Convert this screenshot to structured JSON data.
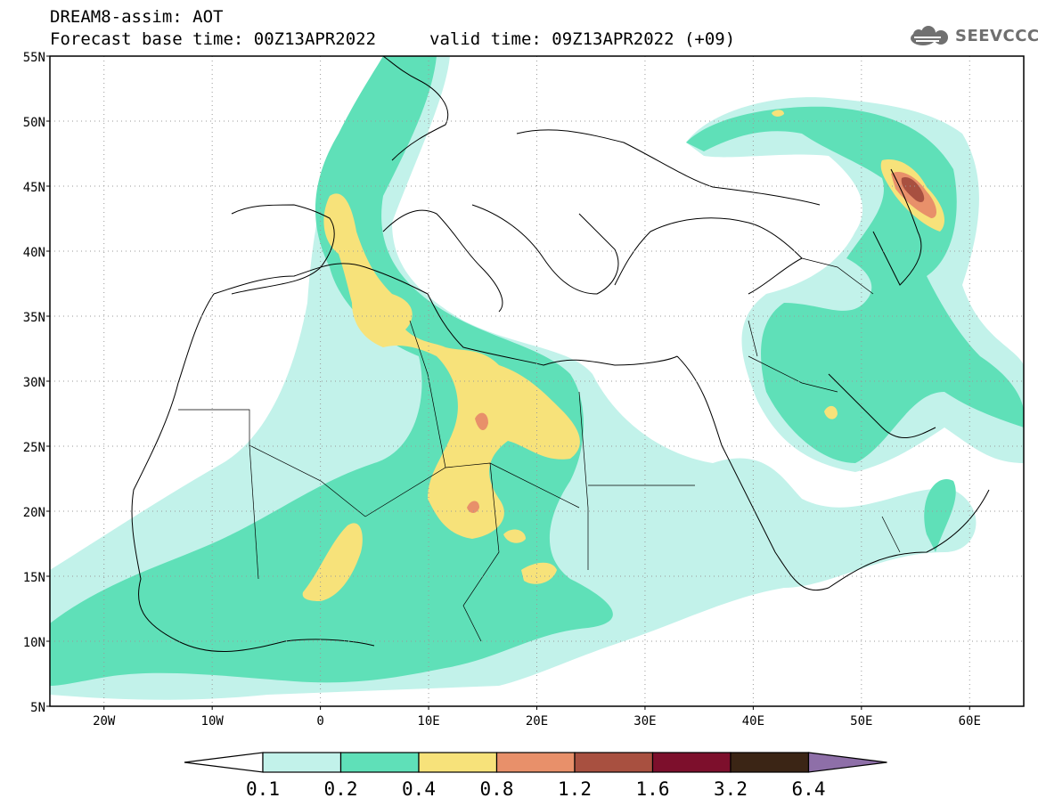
{
  "header": {
    "model_title": "DREAM8-assim: AOT",
    "base_time": "Forecast base time: 00Z13APR2022",
    "valid_time": "valid time: 09Z13APR2022 (+09)"
  },
  "logo": {
    "text": "SEEVCCC",
    "icon": "cloud-logo-icon",
    "color": "#707070"
  },
  "map": {
    "lon_range": [
      -25,
      65
    ],
    "lat_range": [
      5,
      55
    ],
    "lat_labels": [
      "55N",
      "50N",
      "45N",
      "40N",
      "35N",
      "30N",
      "25N",
      "20N",
      "15N",
      "10N",
      "5N"
    ],
    "lon_labels": [
      "20W",
      "10W",
      "0",
      "10E",
      "20E",
      "30E",
      "40E",
      "50E",
      "60E"
    ],
    "gridlines": "dotted"
  },
  "legend": {
    "levels": [
      "0.1",
      "0.2",
      "0.4",
      "0.8",
      "1.2",
      "1.6",
      "3.2",
      "6.4"
    ],
    "colors": [
      "#ffffff",
      "#c2f2ea",
      "#5fe0b8",
      "#f7e27a",
      "#e8906a",
      "#a85040",
      "#7d0f2c",
      "#3b2515",
      "#8e6fa8"
    ]
  }
}
